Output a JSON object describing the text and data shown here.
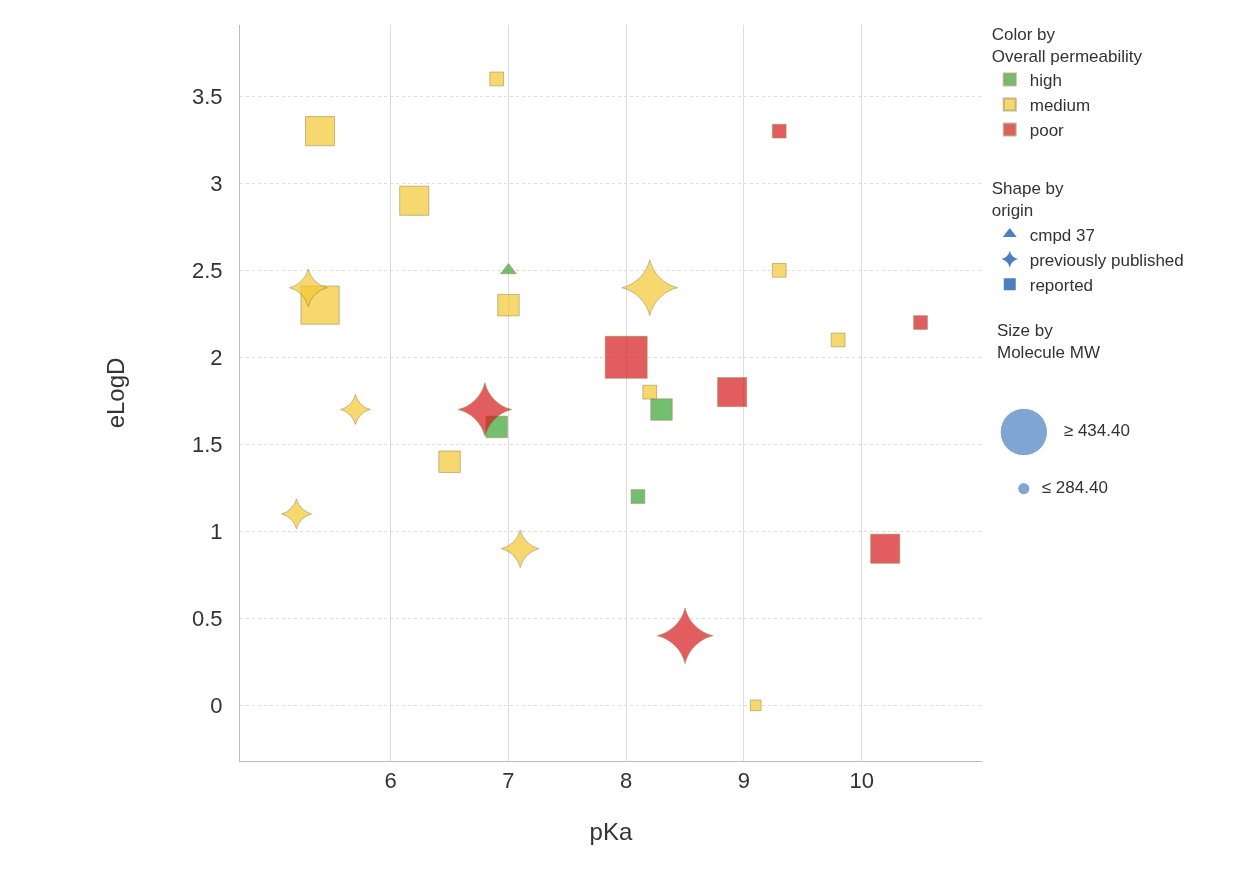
{
  "chart_data": {
    "type": "bubble",
    "xlabel": "pKa",
    "ylabel": "eLogD",
    "legend_title": [
      "Color by\nOverall permeability",
      "Shape by\norigin",
      "Size by\nMolecule MW"
    ],
    "xlim": [
      4.72,
      11.02
    ],
    "xticks": [
      6,
      7,
      8,
      9,
      10
    ],
    "ylim": [
      -0.32,
      3.91
    ],
    "yticks": [
      0,
      0.5,
      1,
      1.5,
      2,
      2.5,
      3,
      3.5
    ],
    "grid": true,
    "legend": "right",
    "size_legend": [
      {
        "value": 1,
        "label": "≥ 434.40"
      },
      {
        "value": 0.065,
        "label": "≤ 284.40"
      }
    ],
    "series": [
      {
        "name": "high",
        "color": "#3aa335",
        "marker": "square",
        "x": [
          8.3,
          6.9,
          8.1
        ],
        "values": [
          1.7,
          1.6,
          1.2
        ],
        "sizes": [
          0.26,
          0.26,
          0.107
        ]
      },
      {
        "name": "medium",
        "color": "#f5c832",
        "marker": "square",
        "x": [
          6.9,
          5.4,
          6.2,
          5.4,
          7.0,
          9.3,
          9.8,
          8.2,
          6.5,
          9.1
        ],
        "values": [
          3.6,
          3.3,
          2.9,
          2.3,
          2.3,
          2.5,
          2.1,
          1.8,
          1.4,
          0.0
        ],
        "sizes": [
          0.107,
          0.48,
          0.48,
          0.83,
          0.26,
          0.107,
          0.107,
          0.107,
          0.26,
          0.065
        ]
      },
      {
        "name": "poor",
        "color": "#d7191c",
        "marker": "square",
        "x": [
          9.3,
          10.5,
          8.0,
          8.9,
          10.2
        ],
        "values": [
          3.3,
          2.2,
          2.0,
          1.8,
          0.9
        ],
        "sizes": [
          0.107,
          0.107,
          1,
          0.48,
          0.48
        ]
      },
      {
        "color": "#3aa335",
        "marker": "triangle",
        "x": [
          7.0
        ],
        "values": [
          2.5
        ],
        "sizes": [
          0.046
        ]
      },
      {
        "color": "#f5c832",
        "marker": "star",
        "x": [
          5.3,
          8.2,
          5.7,
          5.2,
          7.1
        ],
        "values": [
          2.4,
          2.4,
          1.7,
          1.1,
          0.9
        ],
        "sizes": [
          0.25,
          0.55,
          0.16,
          0.16,
          0.25
        ]
      },
      {
        "color": "#d7191c",
        "marker": "star",
        "x": [
          6.8,
          8.5
        ],
        "values": [
          1.7,
          0.4
        ],
        "sizes": [
          0.51,
          0.55
        ]
      },
      {
        "name": "cmpd 37",
        "color": "#4a7fc1",
        "marker": "triangle"
      },
      {
        "name": "previously published",
        "color": "#4a7fc1",
        "marker": "star"
      },
      {
        "name": "reported",
        "color": "#4a7fc1",
        "marker": "square"
      }
    ]
  }
}
